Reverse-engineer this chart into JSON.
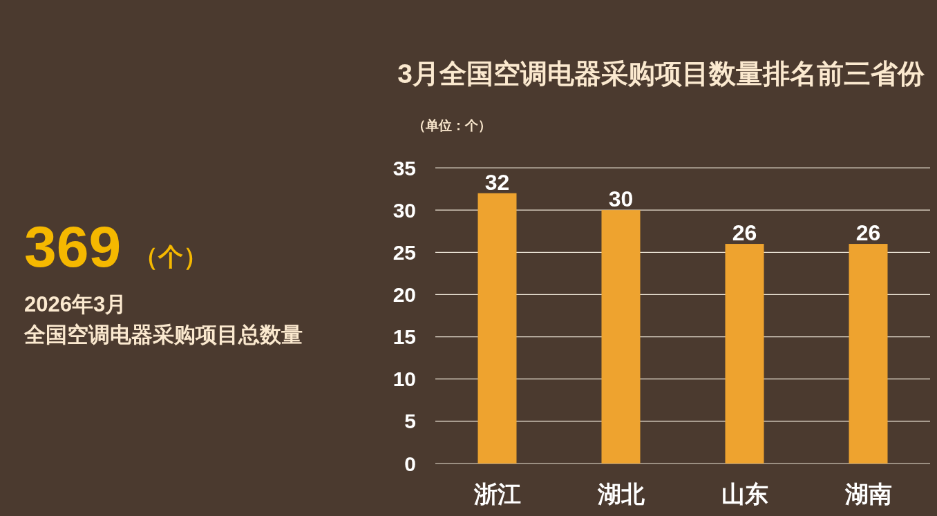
{
  "chart_data": [
    {
      "type": "other",
      "annotations": [
        "369",
        "（个）",
        "2026年3月",
        "全国空调电器采购项目总数量"
      ]
    },
    {
      "type": "bar",
      "title": "3月全国空调电器采购项目数量排名前三省份",
      "ylabel": "（单位：个）",
      "categories": [
        "浙江",
        "湖北",
        "山东",
        "湖南"
      ],
      "values": [
        32,
        30,
        26,
        26
      ],
      "color": "#eea32f",
      "ylim": [
        0,
        35
      ],
      "yticks": [
        0,
        5,
        10,
        15,
        20,
        25,
        30,
        35
      ],
      "grid": "y",
      "data_labels": true
    }
  ]
}
